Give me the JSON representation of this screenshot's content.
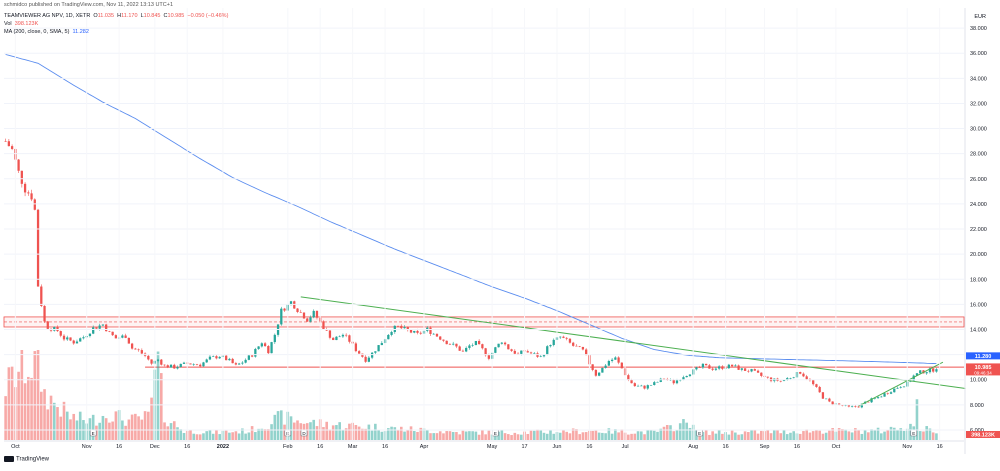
{
  "source_line": "schmidco published on TradingView.com, Nov 11, 2022 13:13 UTC+1",
  "legend": {
    "symbol": "TEAMVIEWER AG NPV, 1D, XETR",
    "o_label": "O",
    "o_value": "11.035",
    "h_label": "H",
    "h_value": "11.170",
    "l_label": "L",
    "l_value": "10.845",
    "c_label": "C",
    "c_value": "10.985",
    "change": "−0.050 (−0.46%)",
    "vol_label": "Vol",
    "vol_value": "398.123K",
    "ma_label": "MA (200, close, 0, SMA, 5)",
    "ma_value": "11.282"
  },
  "currency": "EUR",
  "branding": "TradingView",
  "colors": {
    "up": "#26a69a",
    "down": "#ef5350",
    "ma": "#5b8def",
    "trend": "#4caf50",
    "zone": "#ef5350",
    "ma_badge": "#2962ff",
    "price_badge": "#ef5350"
  },
  "badges": {
    "ma_price": "11.280",
    "last_price": "10.985",
    "countdown": "09:46:34",
    "volume": "398.123K"
  },
  "chart_data": {
    "type": "candlestick",
    "title": "",
    "y_axis": {
      "ticks": [
        6,
        8,
        10,
        12,
        14,
        16,
        18,
        20,
        22,
        24,
        26,
        28,
        30,
        32,
        34,
        36,
        38
      ],
      "tick_labels": [
        "6.000",
        "8.000",
        "10.000",
        "12.000",
        "14.000",
        "16.000",
        "18.000",
        "20.000",
        "22.000",
        "24.000",
        "26.000",
        "28.000",
        "30.000",
        "32.000",
        "34.000",
        "36.000",
        "38.000"
      ],
      "range": [
        5.2,
        39.6
      ]
    },
    "x_axis": {
      "labels": [
        {
          "text": "Oct",
          "idx": 3
        },
        {
          "text": "Nov",
          "idx": 25
        },
        {
          "text": "16",
          "idx": 35
        },
        {
          "text": "Dec",
          "idx": 46
        },
        {
          "text": "16",
          "idx": 56
        },
        {
          "text": "2022",
          "idx": 67
        },
        {
          "text": "Feb",
          "idx": 87
        },
        {
          "text": "16",
          "idx": 97
        },
        {
          "text": "Mar",
          "idx": 107
        },
        {
          "text": "16",
          "idx": 117
        },
        {
          "text": "Apr",
          "idx": 129
        },
        {
          "text": "May",
          "idx": 150
        },
        {
          "text": "17",
          "idx": 160
        },
        {
          "text": "Jun",
          "idx": 170
        },
        {
          "text": "16",
          "idx": 180
        },
        {
          "text": "Jul",
          "idx": 191
        },
        {
          "text": "Aug",
          "idx": 212
        },
        {
          "text": "16",
          "idx": 222
        },
        {
          "text": "Sep",
          "idx": 234
        },
        {
          "text": "16",
          "idx": 244
        },
        {
          "text": "Oct",
          "idx": 256
        },
        {
          "text": "Nov",
          "idx": 278
        },
        {
          "text": "16",
          "idx": 288
        }
      ],
      "total_slots": 296
    },
    "price_keyframes": [
      [
        0,
        29.0
      ],
      [
        2,
        28.3
      ],
      [
        4,
        26.5
      ],
      [
        6,
        25.2
      ],
      [
        8,
        24.6
      ],
      [
        9,
        23.5
      ],
      [
        10,
        17.5
      ],
      [
        11,
        16.0
      ],
      [
        12,
        14.6
      ],
      [
        13,
        14.2
      ],
      [
        16,
        13.9
      ],
      [
        18,
        13.3
      ],
      [
        21,
        13.0
      ],
      [
        24,
        13.4
      ],
      [
        27,
        14.1
      ],
      [
        30,
        14.4
      ],
      [
        32,
        13.7
      ],
      [
        34,
        13.3
      ],
      [
        37,
        13.5
      ],
      [
        39,
        12.5
      ],
      [
        41,
        12.3
      ],
      [
        43,
        11.9
      ],
      [
        45,
        11.3
      ],
      [
        47,
        11.6
      ],
      [
        49,
        11.1
      ],
      [
        52,
        11.0
      ],
      [
        56,
        11.3
      ],
      [
        60,
        11.2
      ],
      [
        63,
        11.7
      ],
      [
        66,
        11.9
      ],
      [
        69,
        11.5
      ],
      [
        71,
        11.1
      ],
      [
        73,
        11.4
      ],
      [
        76,
        12.0
      ],
      [
        79,
        13.0
      ],
      [
        81,
        12.3
      ],
      [
        83,
        13.6
      ],
      [
        85,
        15.5
      ],
      [
        88,
        16.2
      ],
      [
        90,
        15.6
      ],
      [
        93,
        14.8
      ],
      [
        95,
        15.3
      ],
      [
        97,
        14.6
      ],
      [
        99,
        13.8
      ],
      [
        101,
        13.2
      ],
      [
        104,
        13.6
      ],
      [
        106,
        13.1
      ],
      [
        108,
        12.4
      ],
      [
        111,
        11.6
      ],
      [
        113,
        12.1
      ],
      [
        116,
        13.0
      ],
      [
        119,
        14.0
      ],
      [
        121,
        14.2
      ],
      [
        124,
        13.9
      ],
      [
        127,
        13.6
      ],
      [
        130,
        14.0
      ],
      [
        133,
        13.5
      ],
      [
        136,
        13.0
      ],
      [
        139,
        12.6
      ],
      [
        141,
        12.2
      ],
      [
        143,
        12.7
      ],
      [
        145,
        12.9
      ],
      [
        147,
        12.4
      ],
      [
        149,
        11.8
      ],
      [
        151,
        12.5
      ],
      [
        153,
        13.1
      ],
      [
        155,
        12.5
      ],
      [
        158,
        12.0
      ],
      [
        160,
        12.3
      ],
      [
        163,
        12.0
      ],
      [
        165,
        11.8
      ],
      [
        168,
        12.9
      ],
      [
        171,
        13.4
      ],
      [
        173,
        13.1
      ],
      [
        175,
        12.7
      ],
      [
        178,
        12.3
      ],
      [
        180,
        11.3
      ],
      [
        182,
        10.4
      ],
      [
        184,
        10.9
      ],
      [
        186,
        11.5
      ],
      [
        188,
        11.7
      ],
      [
        190,
        10.9
      ],
      [
        192,
        10.0
      ],
      [
        194,
        9.5
      ],
      [
        197,
        9.4
      ],
      [
        200,
        9.7
      ],
      [
        203,
        10.1
      ],
      [
        206,
        9.8
      ],
      [
        209,
        10.3
      ],
      [
        212,
        10.7
      ],
      [
        215,
        11.1
      ],
      [
        218,
        10.9
      ],
      [
        221,
        11.0
      ],
      [
        224,
        11.1
      ],
      [
        227,
        10.8
      ],
      [
        230,
        10.7
      ],
      [
        233,
        10.3
      ],
      [
        236,
        10.0
      ],
      [
        239,
        9.9
      ],
      [
        242,
        10.2
      ],
      [
        245,
        10.6
      ],
      [
        248,
        9.9
      ],
      [
        250,
        9.3
      ],
      [
        252,
        8.6
      ],
      [
        254,
        8.2
      ],
      [
        257,
        8.0
      ],
      [
        260,
        7.8
      ],
      [
        263,
        7.9
      ],
      [
        266,
        8.3
      ],
      [
        269,
        8.6
      ],
      [
        272,
        9.0
      ],
      [
        275,
        9.4
      ],
      [
        278,
        9.7
      ],
      [
        280,
        10.3
      ],
      [
        282,
        10.6
      ],
      [
        284,
        10.7
      ],
      [
        286,
        10.8
      ],
      [
        287,
        10.98
      ]
    ],
    "ma_line": [
      [
        0,
        35.9
      ],
      [
        10,
        35.2
      ],
      [
        20,
        33.6
      ],
      [
        30,
        32.1
      ],
      [
        40,
        30.8
      ],
      [
        50,
        29.2
      ],
      [
        60,
        27.6
      ],
      [
        70,
        26.1
      ],
      [
        80,
        24.9
      ],
      [
        90,
        23.8
      ],
      [
        100,
        22.6
      ],
      [
        110,
        21.5
      ],
      [
        120,
        20.4
      ],
      [
        130,
        19.4
      ],
      [
        140,
        18.4
      ],
      [
        150,
        17.4
      ],
      [
        160,
        16.5
      ],
      [
        170,
        15.5
      ],
      [
        180,
        14.4
      ],
      [
        190,
        13.3
      ],
      [
        200,
        12.4
      ],
      [
        210,
        11.95
      ],
      [
        220,
        11.75
      ],
      [
        240,
        11.62
      ],
      [
        260,
        11.5
      ],
      [
        280,
        11.35
      ],
      [
        287,
        11.28
      ]
    ],
    "volume_keyframes": [
      [
        0,
        0.7
      ],
      [
        4,
        0.9
      ],
      [
        8,
        1.0
      ],
      [
        10,
        0.95
      ],
      [
        12,
        0.6
      ],
      [
        16,
        0.45
      ],
      [
        20,
        0.3
      ],
      [
        26,
        0.25
      ],
      [
        32,
        0.35
      ],
      [
        38,
        0.25
      ],
      [
        44,
        0.3
      ],
      [
        47,
        1.0
      ],
      [
        49,
        0.3
      ],
      [
        55,
        0.12
      ],
      [
        65,
        0.1
      ],
      [
        75,
        0.12
      ],
      [
        80,
        0.2
      ],
      [
        85,
        0.3
      ],
      [
        90,
        0.25
      ],
      [
        100,
        0.2
      ],
      [
        110,
        0.18
      ],
      [
        120,
        0.15
      ],
      [
        140,
        0.1
      ],
      [
        160,
        0.1
      ],
      [
        180,
        0.12
      ],
      [
        200,
        0.1
      ],
      [
        212,
        0.25
      ],
      [
        213,
        0.1
      ],
      [
        230,
        0.1
      ],
      [
        250,
        0.12
      ],
      [
        270,
        0.12
      ],
      [
        280,
        0.2
      ],
      [
        281,
        0.42
      ],
      [
        282,
        0.15
      ],
      [
        287,
        0.12
      ]
    ],
    "resistance_zone": {
      "low": 14.2,
      "high": 15.0,
      "dashed_line": 14.6
    },
    "support_line": 11.0,
    "trendlines": [
      {
        "from": [
          91,
          16.6
        ],
        "to": [
          296,
          9.3
        ]
      },
      {
        "from": [
          263,
          7.9
        ],
        "to": [
          289,
          11.4
        ]
      }
    ],
    "event_markers": [
      {
        "idx": 27,
        "label": "E"
      },
      {
        "idx": 87,
        "label": "E"
      },
      {
        "idx": 92,
        "label": "D"
      },
      {
        "idx": 151,
        "label": "E"
      },
      {
        "idx": 214,
        "label": "E"
      },
      {
        "idx": 280,
        "label": "E"
      }
    ]
  }
}
